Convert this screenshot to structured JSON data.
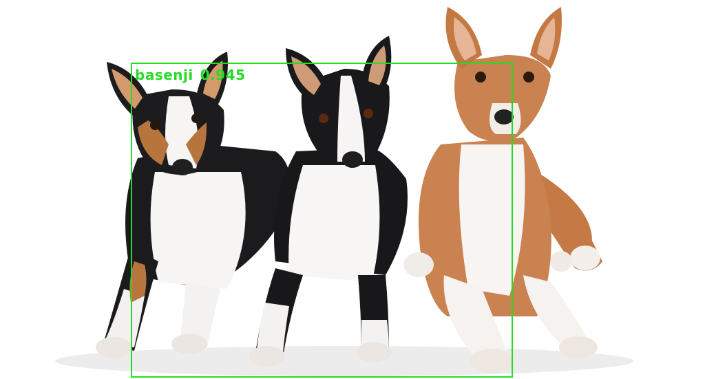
{
  "detection": {
    "label": "basenji",
    "score": "0.945",
    "box_color": "#22dd22"
  },
  "subjects": [
    {
      "name": "tricolor-basenji"
    },
    {
      "name": "black-white-basenji"
    },
    {
      "name": "red-white-basenji"
    }
  ]
}
